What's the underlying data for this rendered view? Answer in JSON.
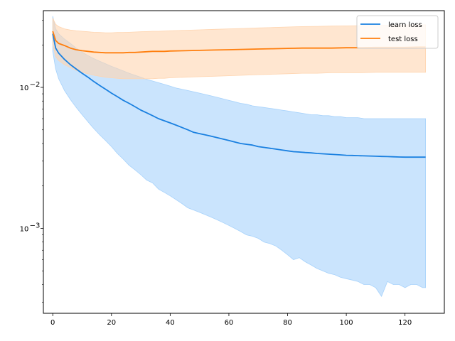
{
  "chart_data": {
    "type": "line",
    "title": "",
    "xlabel": "",
    "ylabel": "",
    "x_range": [
      -3.2,
      133.4
    ],
    "y_scale": "log",
    "y_range": [
      0.00025,
      0.035
    ],
    "grid": false,
    "legend_position": "top-right",
    "x_ticks": [
      {
        "value": 0,
        "label": "0"
      },
      {
        "value": 20,
        "label": "20"
      },
      {
        "value": 40,
        "label": "40"
      },
      {
        "value": 60,
        "label": "60"
      },
      {
        "value": 80,
        "label": "80"
      },
      {
        "value": 100,
        "label": "100"
      },
      {
        "value": 120,
        "label": "120"
      }
    ],
    "y_major_ticks": [
      {
        "value": 0.001,
        "base": "10",
        "exp": "−3"
      },
      {
        "value": 0.01,
        "base": "10",
        "exp": "−2"
      }
    ],
    "y_minor_ticks": [
      0.0003,
      0.0004,
      0.0005,
      0.0006,
      0.0007,
      0.0008,
      0.0009,
      0.002,
      0.003,
      0.004,
      0.005,
      0.006,
      0.007,
      0.008,
      0.009,
      0.02,
      0.03
    ],
    "series": [
      {
        "name": "learn loss",
        "color": "#1f77b4",
        "line_color": "#1a80e0",
        "band_color": "#a7d2fb",
        "x": [
          0,
          1,
          2,
          4,
          6,
          8,
          10,
          12,
          14,
          16,
          18,
          20,
          22,
          24,
          26,
          28,
          30,
          32,
          34,
          36,
          38,
          40,
          42,
          44,
          46,
          48,
          50,
          52,
          54,
          56,
          58,
          60,
          62,
          64,
          66,
          68,
          70,
          72,
          74,
          76,
          78,
          80,
          82,
          84,
          86,
          88,
          90,
          92,
          94,
          96,
          98,
          100,
          102,
          104,
          106,
          108,
          110,
          112,
          114,
          116,
          118,
          120,
          122,
          124,
          126,
          127
        ],
        "mean": [
          0.024,
          0.019,
          0.0175,
          0.0158,
          0.0145,
          0.0135,
          0.0126,
          0.0118,
          0.011,
          0.0103,
          0.0097,
          0.0091,
          0.0086,
          0.0081,
          0.0077,
          0.0073,
          0.0069,
          0.0066,
          0.0063,
          0.006,
          0.0058,
          0.0056,
          0.0054,
          0.0052,
          0.005,
          0.0048,
          0.0047,
          0.0046,
          0.0045,
          0.0044,
          0.0043,
          0.0042,
          0.0041,
          0.004,
          0.00395,
          0.0039,
          0.0038,
          0.00375,
          0.0037,
          0.00365,
          0.0036,
          0.00355,
          0.0035,
          0.00348,
          0.00345,
          0.00343,
          0.0034,
          0.00338,
          0.00336,
          0.00334,
          0.00332,
          0.0033,
          0.00329,
          0.00328,
          0.00327,
          0.00326,
          0.00325,
          0.00324,
          0.00323,
          0.00322,
          0.00321,
          0.0032,
          0.0032,
          0.0032,
          0.0032,
          0.0032
        ],
        "upper": [
          0.032,
          0.026,
          0.024,
          0.022,
          0.0205,
          0.019,
          0.0178,
          0.0168,
          0.016,
          0.0153,
          0.0147,
          0.0141,
          0.0136,
          0.0131,
          0.0126,
          0.0122,
          0.0118,
          0.0114,
          0.0111,
          0.0108,
          0.0105,
          0.0102,
          0.0099,
          0.0097,
          0.0095,
          0.0093,
          0.0091,
          0.0089,
          0.0087,
          0.0085,
          0.0083,
          0.0081,
          0.0079,
          0.0077,
          0.0076,
          0.0074,
          0.0073,
          0.0072,
          0.0071,
          0.007,
          0.0069,
          0.0068,
          0.0067,
          0.0066,
          0.0065,
          0.0064,
          0.0064,
          0.0063,
          0.0063,
          0.0062,
          0.0062,
          0.0061,
          0.0061,
          0.0061,
          0.006,
          0.006,
          0.006,
          0.006,
          0.006,
          0.006,
          0.006,
          0.006,
          0.006,
          0.006,
          0.006,
          0.006
        ],
        "lower": [
          0.018,
          0.0135,
          0.0115,
          0.0095,
          0.0082,
          0.0072,
          0.0064,
          0.0057,
          0.0051,
          0.0046,
          0.0042,
          0.0038,
          0.0034,
          0.0031,
          0.0028,
          0.0026,
          0.0024,
          0.0022,
          0.0021,
          0.0019,
          0.0018,
          0.0017,
          0.0016,
          0.0015,
          0.0014,
          0.00135,
          0.0013,
          0.00125,
          0.0012,
          0.00115,
          0.0011,
          0.00105,
          0.001,
          0.00095,
          0.0009,
          0.00088,
          0.00085,
          0.0008,
          0.00078,
          0.00075,
          0.0007,
          0.00065,
          0.0006,
          0.00062,
          0.00058,
          0.00055,
          0.00052,
          0.0005,
          0.00048,
          0.00047,
          0.00045,
          0.00044,
          0.00043,
          0.00042,
          0.0004,
          0.0004,
          0.00038,
          0.00033,
          0.00042,
          0.0004,
          0.0004,
          0.00038,
          0.0004,
          0.0004,
          0.00038,
          0.00038
        ]
      },
      {
        "name": "test loss",
        "color": "#ff7f0e",
        "line_color": "#ff7f0e",
        "band_color": "#ffd5b0",
        "x": [
          0,
          1,
          2,
          4,
          6,
          8,
          10,
          12,
          14,
          16,
          18,
          20,
          22,
          24,
          26,
          28,
          30,
          32,
          34,
          36,
          38,
          40,
          45,
          50,
          55,
          60,
          65,
          70,
          75,
          80,
          85,
          90,
          95,
          100,
          105,
          110,
          115,
          120,
          125,
          127
        ],
        "mean": [
          0.025,
          0.0215,
          0.0205,
          0.0198,
          0.019,
          0.0185,
          0.0182,
          0.018,
          0.0178,
          0.0177,
          0.0176,
          0.0176,
          0.0176,
          0.0176,
          0.0177,
          0.0177,
          0.0178,
          0.0179,
          0.018,
          0.018,
          0.018,
          0.0181,
          0.0182,
          0.0183,
          0.0184,
          0.0185,
          0.0186,
          0.0187,
          0.0188,
          0.0189,
          0.019,
          0.019,
          0.019,
          0.0191,
          0.0191,
          0.0192,
          0.0192,
          0.0192,
          0.0193,
          0.0193
        ],
        "upper": [
          0.031,
          0.028,
          0.027,
          0.026,
          0.0255,
          0.0252,
          0.025,
          0.0248,
          0.0246,
          0.0245,
          0.0244,
          0.0244,
          0.0245,
          0.0245,
          0.0246,
          0.0247,
          0.0248,
          0.0249,
          0.025,
          0.025,
          0.0251,
          0.0252,
          0.0254,
          0.0256,
          0.0258,
          0.026,
          0.0262,
          0.0264,
          0.0266,
          0.0268,
          0.027,
          0.0271,
          0.0272,
          0.0273,
          0.0274,
          0.0275,
          0.0276,
          0.0277,
          0.0278,
          0.0278
        ],
        "lower": [
          0.02,
          0.0165,
          0.0155,
          0.0145,
          0.0138,
          0.0132,
          0.0128,
          0.0125,
          0.0122,
          0.012,
          0.0118,
          0.0117,
          0.0116,
          0.0115,
          0.0115,
          0.0115,
          0.0115,
          0.0115,
          0.0115,
          0.0116,
          0.0116,
          0.0117,
          0.0118,
          0.0119,
          0.012,
          0.0121,
          0.0122,
          0.0123,
          0.0124,
          0.0125,
          0.0126,
          0.0126,
          0.0127,
          0.0127,
          0.0127,
          0.0128,
          0.0128,
          0.0128,
          0.0128,
          0.0128
        ]
      }
    ]
  }
}
